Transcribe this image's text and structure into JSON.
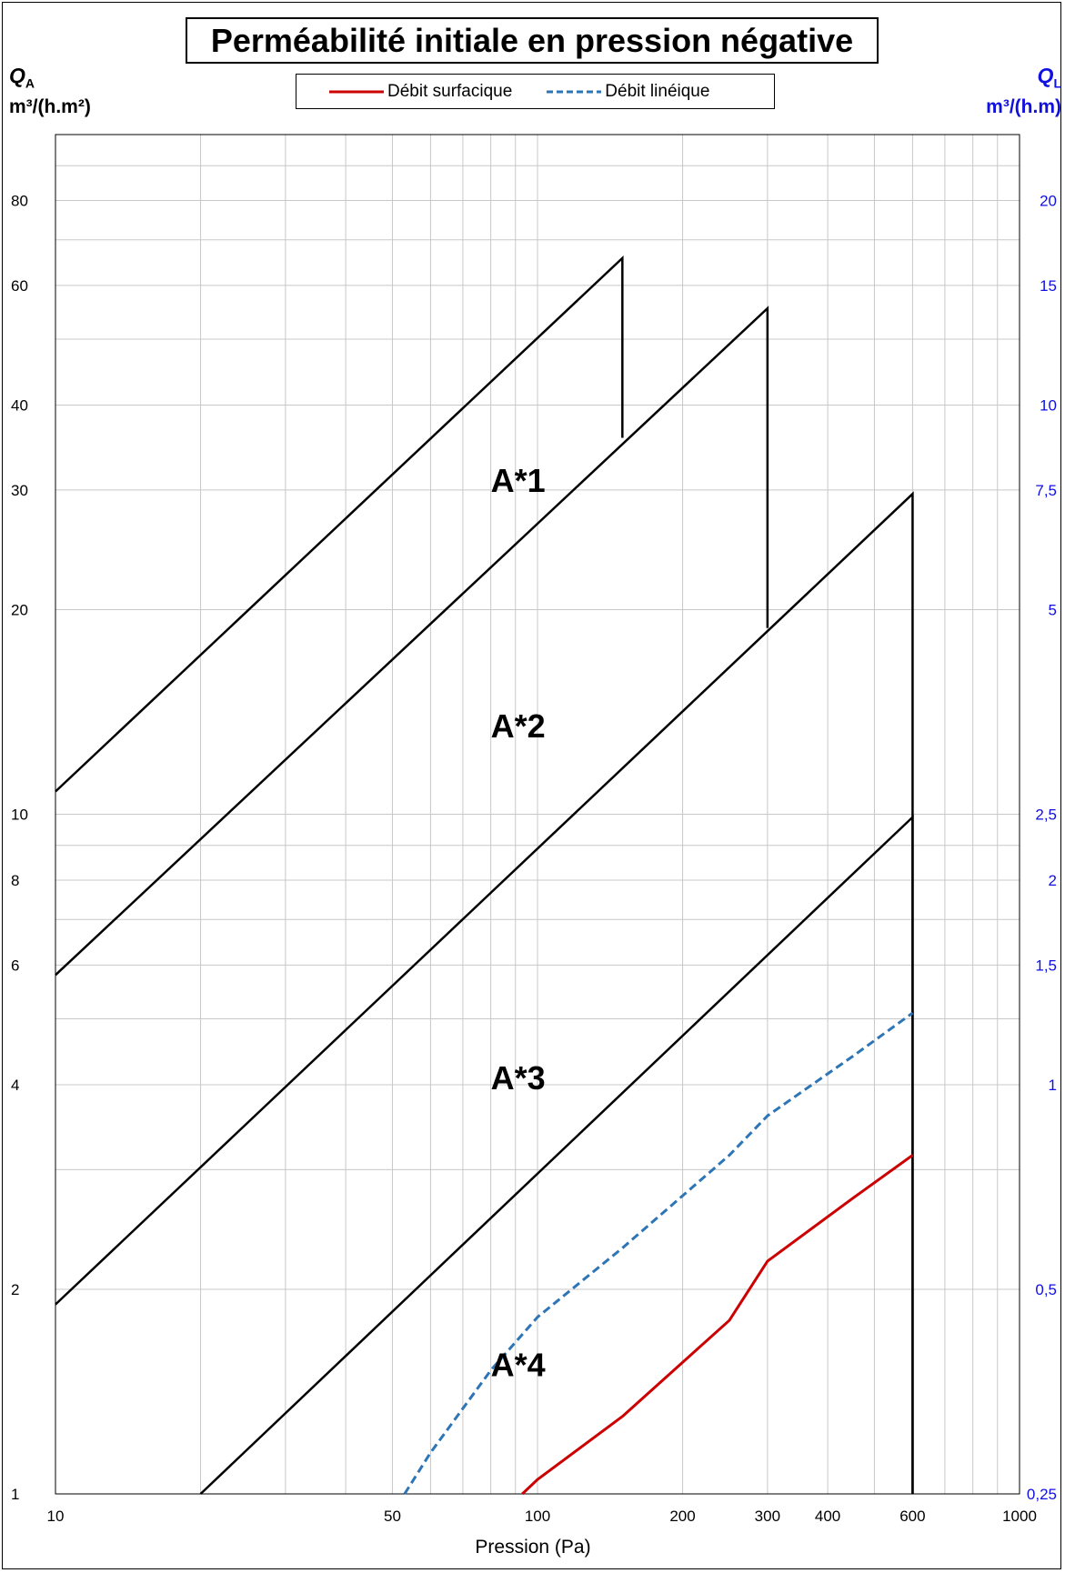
{
  "chart_data": {
    "type": "line",
    "title": "Perméabilité initiale en pression négative",
    "x_scale": "log",
    "y_scale": "log",
    "xlim": [
      10,
      1000
    ],
    "ylim_left": [
      1,
      100
    ],
    "ylim_right": [
      0.25,
      25
    ],
    "grid": true,
    "legend_position": "top-center",
    "xlabel": "Pression (Pa)",
    "ylabel_left": {
      "symbol": "Q",
      "sub": "A",
      "unit": "m³/(h.m²)"
    },
    "ylabel_right": {
      "symbol": "Q",
      "sub": "L",
      "unit": "m³/(h.m)"
    },
    "x_ticks": [
      {
        "v": 10,
        "label": "10"
      },
      {
        "v": 50,
        "label": "50"
      },
      {
        "v": 100,
        "label": "100"
      },
      {
        "v": 200,
        "label": "200"
      },
      {
        "v": 300,
        "label": "300"
      },
      {
        "v": 400,
        "label": "400"
      },
      {
        "v": 600,
        "label": "600"
      },
      {
        "v": 1000,
        "label": "1000"
      }
    ],
    "y_ticks_left": [
      {
        "v": 1,
        "label": "1"
      },
      {
        "v": 2,
        "label": "2"
      },
      {
        "v": 4,
        "label": "4"
      },
      {
        "v": 6,
        "label": "6"
      },
      {
        "v": 8,
        "label": "8"
      },
      {
        "v": 10,
        "label": "10"
      },
      {
        "v": 20,
        "label": "20"
      },
      {
        "v": 30,
        "label": "30"
      },
      {
        "v": 40,
        "label": "40"
      },
      {
        "v": 60,
        "label": "60"
      },
      {
        "v": 80,
        "label": "80"
      }
    ],
    "y_ticks_right": [
      {
        "v": 0.25,
        "label": "0,25"
      },
      {
        "v": 0.5,
        "label": "0,5"
      },
      {
        "v": 1,
        "label": "1"
      },
      {
        "v": 1.5,
        "label": "1,5"
      },
      {
        "v": 2,
        "label": "2"
      },
      {
        "v": 2.5,
        "label": "2,5"
      },
      {
        "v": 5,
        "label": "5"
      },
      {
        "v": 7.5,
        "label": "7,5"
      },
      {
        "v": 10,
        "label": "10"
      },
      {
        "v": 15,
        "label": "15"
      },
      {
        "v": 20,
        "label": "20"
      }
    ],
    "class_boundaries": [
      {
        "points": [
          [
            10,
            10.8
          ],
          [
            150,
            65.8
          ],
          [
            150,
            35.8
          ]
        ]
      },
      {
        "points": [
          [
            10,
            5.8
          ],
          [
            300,
            55.5
          ],
          [
            300,
            18.8
          ]
        ]
      },
      {
        "points": [
          [
            10,
            1.9
          ],
          [
            600,
            29.6
          ],
          [
            600,
            1
          ]
        ]
      },
      {
        "points": [
          [
            20,
            1
          ],
          [
            600,
            9.9
          ],
          [
            600,
            1
          ]
        ]
      }
    ],
    "class_labels": [
      {
        "label": "A*1",
        "x": 80,
        "y": 31
      },
      {
        "label": "A*2",
        "x": 80,
        "y": 13.5
      },
      {
        "label": "A*3",
        "x": 80,
        "y": 4.1
      },
      {
        "label": "A*4",
        "x": 80,
        "y": 1.55
      }
    ],
    "series": [
      {
        "name": "Débit surfacique",
        "axis": "left",
        "color": "#cc0000",
        "style": "solid",
        "points": [
          [
            93,
            1
          ],
          [
            100,
            1.05
          ],
          [
            150,
            1.3
          ],
          [
            250,
            1.8
          ],
          [
            300,
            2.2
          ],
          [
            450,
            2.72
          ],
          [
            600,
            3.15
          ]
        ]
      },
      {
        "name": "Débit linéique",
        "axis": "left",
        "color": "#2e75b6",
        "style": "dashed",
        "points": [
          [
            53,
            1
          ],
          [
            60,
            1.15
          ],
          [
            80,
            1.52
          ],
          [
            100,
            1.82
          ],
          [
            150,
            2.3
          ],
          [
            250,
            3.15
          ],
          [
            300,
            3.6
          ],
          [
            450,
            4.4
          ],
          [
            600,
            5.1
          ]
        ]
      }
    ]
  }
}
